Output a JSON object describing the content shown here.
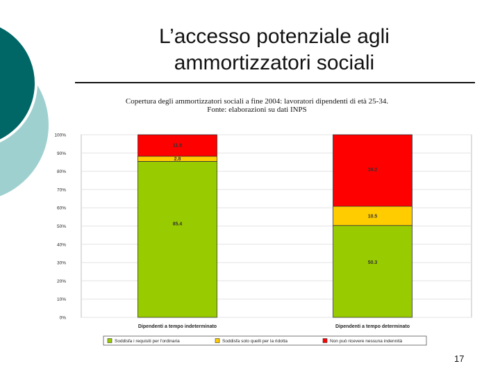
{
  "slide": {
    "title_line1": "L’accesso potenziale agli",
    "title_line2": "ammortizzatori sociali",
    "page_number": "17"
  },
  "colors": {
    "deco_dark": "#006666",
    "deco_light": "#9fd0d0",
    "green": "#99cc00",
    "yellow": "#ffcc00",
    "red": "#ff0000"
  },
  "chart_data": {
    "type": "bar",
    "stacked": true,
    "title_line1": "Copertura degli ammortizzatori sociali a fine 2004: lavoratori dipendenti di età 25-34.",
    "title_line2": "Fonte: elaborazioni su dati INPS",
    "categories": [
      "Dipendenti a tempo indeterminato",
      "Dipendenti a tempo determinato"
    ],
    "series": [
      {
        "name": "Soddisfa i requisiti per l'ordinaria",
        "color": "#99cc00",
        "values": [
          85.4,
          50.3
        ],
        "labels": [
          "85.4",
          "50.3"
        ]
      },
      {
        "name": "Soddisfa solo quelli per la ridotta",
        "color": "#ffcc00",
        "values": [
          2.8,
          10.5
        ],
        "labels": [
          "2.8",
          "10.5"
        ]
      },
      {
        "name": "Non può ricevere nessuna indennità",
        "color": "#ff0000",
        "values": [
          11.8,
          39.2
        ],
        "labels": [
          "11.8",
          "39.2"
        ]
      }
    ],
    "ylim": [
      0,
      100
    ],
    "yticks": [
      "0%",
      "10%",
      "20%",
      "30%",
      "40%",
      "50%",
      "60%",
      "70%",
      "80%",
      "90%",
      "100%"
    ],
    "legend_position": "bottom",
    "grid": true
  }
}
